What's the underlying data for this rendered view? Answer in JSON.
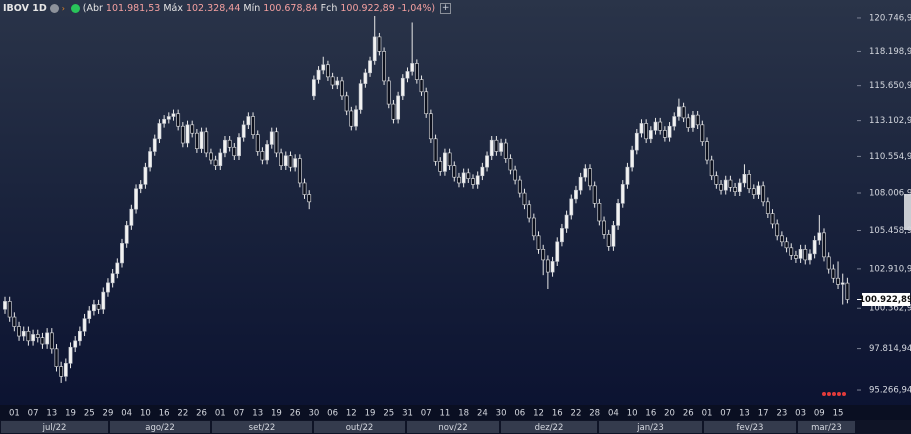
{
  "chart_data": {
    "type": "candlestick",
    "symbol": "IBOV 1D",
    "legend_items": [
      {
        "label": "(Abr",
        "value": "101.981,53"
      },
      {
        "label": "Máx",
        "value": "102.328,44"
      },
      {
        "label": "Mín",
        "value": "100.678,84"
      },
      {
        "label": "Fch",
        "value": "100.922,89"
      }
    ],
    "change": "-1,04%)",
    "log": true,
    "grid": false,
    "up_color": "#f2f2f2",
    "down_color": "#0b0f1c",
    "wick_color": "#e8e8e8",
    "ylim": [
      94363,
      121206
    ],
    "yticks": [
      {
        "value": 120746.94,
        "label": "120.746,94"
      },
      {
        "value": 118198.94,
        "label": "118.198,94"
      },
      {
        "value": 115650.94,
        "label": "115.650,94"
      },
      {
        "value": 113102.94,
        "label": "113.102,94"
      },
      {
        "value": 110554.94,
        "label": "110.554,94"
      },
      {
        "value": 108006.94,
        "label": "108.006,94"
      },
      {
        "value": 105458.94,
        "label": "105.458,94"
      },
      {
        "value": 102910.94,
        "label": "102.910,94"
      },
      {
        "value": 100362.94,
        "label": "100.362,94"
      },
      {
        "value": 97814.94,
        "label": "97.814,94"
      },
      {
        "value": 95266.94,
        "label": "95.266,94"
      }
    ],
    "last_price": {
      "value": 100922.89,
      "label": "100.922,89"
    },
    "months": [
      "jul/22",
      "ago/22",
      "set/22",
      "out/22",
      "nov/22",
      "dez/22",
      "jan/23",
      "fev/23",
      "mar/23"
    ],
    "categories": [
      null,
      null,
      "01",
      null,
      null,
      null,
      "07",
      null,
      null,
      null,
      "13",
      null,
      null,
      null,
      "19",
      null,
      null,
      null,
      "25",
      null,
      null,
      null,
      "29",
      null,
      null,
      null,
      "04",
      null,
      null,
      null,
      "10",
      null,
      null,
      null,
      "16",
      null,
      null,
      null,
      "22",
      null,
      null,
      null,
      "26",
      null,
      null,
      null,
      "01",
      null,
      null,
      null,
      "07",
      null,
      null,
      null,
      "13",
      null,
      null,
      null,
      "19",
      null,
      null,
      null,
      "26",
      null,
      null,
      null,
      "30",
      null,
      null,
      null,
      "06",
      null,
      null,
      null,
      "12",
      null,
      null,
      null,
      "19",
      null,
      null,
      null,
      "25",
      null,
      null,
      null,
      "31",
      null,
      null,
      null,
      "07",
      null,
      null,
      null,
      "11",
      null,
      null,
      null,
      "18",
      null,
      null,
      null,
      "24",
      null,
      null,
      null,
      "30",
      null,
      null,
      null,
      "06",
      null,
      null,
      null,
      "12",
      null,
      null,
      null,
      "16",
      null,
      null,
      null,
      "22",
      null,
      null,
      null,
      "28",
      null,
      null,
      null,
      "04",
      null,
      null,
      null,
      "10",
      null,
      null,
      null,
      "16",
      null,
      null,
      null,
      "20",
      null,
      null,
      null,
      "26",
      null,
      null,
      null,
      "01",
      null,
      null,
      null,
      "07",
      null,
      null,
      null,
      "13",
      null,
      null,
      null,
      "17",
      null,
      null,
      null,
      "23",
      null,
      null,
      null,
      "03",
      null,
      null,
      null,
      "09",
      null,
      null,
      null,
      "15",
      null,
      null
    ],
    "ohlc": [
      [
        100300,
        101100,
        100000,
        100800
      ],
      [
        100800,
        101100,
        99500,
        99800
      ],
      [
        99800,
        100100,
        98900,
        99200
      ],
      [
        99200,
        99500,
        98300,
        98600
      ],
      [
        98600,
        99200,
        98300,
        98900
      ],
      [
        98900,
        99200,
        98000,
        98300
      ],
      [
        98300,
        99000,
        98000,
        98700
      ],
      [
        98700,
        99000,
        98200,
        98500
      ],
      [
        98500,
        98800,
        97800,
        98100
      ],
      [
        98100,
        99100,
        97800,
        98800
      ],
      [
        98800,
        99100,
        97500,
        97800
      ],
      [
        97800,
        98100,
        96400,
        96700
      ],
      [
        96700,
        97000,
        95700,
        96100
      ],
      [
        96100,
        97200,
        95800,
        96900
      ],
      [
        96900,
        98200,
        96600,
        97900
      ],
      [
        97900,
        98600,
        97600,
        98300
      ],
      [
        98300,
        99200,
        98000,
        98900
      ],
      [
        98900,
        100000,
        98600,
        99700
      ],
      [
        99700,
        100500,
        99400,
        100200
      ],
      [
        100200,
        100900,
        99900,
        100600
      ],
      [
        100600,
        100900,
        100000,
        100300
      ],
      [
        100300,
        101700,
        100000,
        101400
      ],
      [
        101400,
        102300,
        101100,
        102000
      ],
      [
        102000,
        102900,
        101700,
        102600
      ],
      [
        102600,
        103600,
        102300,
        103300
      ],
      [
        103300,
        104900,
        103000,
        104600
      ],
      [
        104600,
        106100,
        104300,
        105800
      ],
      [
        105800,
        107200,
        105500,
        106900
      ],
      [
        106900,
        108600,
        106600,
        108300
      ],
      [
        108300,
        108900,
        108000,
        108600
      ],
      [
        108600,
        110100,
        108300,
        109800
      ],
      [
        109800,
        111200,
        109500,
        110900
      ],
      [
        110900,
        112100,
        110600,
        111800
      ],
      [
        111800,
        113200,
        111500,
        112900
      ],
      [
        112900,
        113500,
        112600,
        113200
      ],
      [
        113200,
        113700,
        112900,
        113400
      ],
      [
        113400,
        113900,
        113100,
        113600
      ],
      [
        113600,
        113900,
        112400,
        112700
      ],
      [
        112700,
        113000,
        111200,
        111500
      ],
      [
        111500,
        113100,
        111200,
        112800
      ],
      [
        112800,
        113100,
        111900,
        112200
      ],
      [
        112200,
        112500,
        110800,
        111100
      ],
      [
        111100,
        112600,
        110800,
        112300
      ],
      [
        112300,
        112600,
        110500,
        110800
      ],
      [
        110800,
        111100,
        110000,
        110300
      ],
      [
        110300,
        110600,
        109600,
        109900
      ],
      [
        109900,
        111100,
        109600,
        110800
      ],
      [
        110800,
        112000,
        110500,
        111700
      ],
      [
        111700,
        112000,
        110900,
        111200
      ],
      [
        111200,
        111500,
        110300,
        110600
      ],
      [
        110600,
        112200,
        110300,
        111900
      ],
      [
        111900,
        113100,
        111600,
        112800
      ],
      [
        112800,
        113700,
        112500,
        113400
      ],
      [
        113400,
        113700,
        111800,
        112100
      ],
      [
        112100,
        112400,
        110600,
        110900
      ],
      [
        110900,
        111200,
        110000,
        110300
      ],
      [
        110300,
        111700,
        110000,
        111400
      ],
      [
        111400,
        112600,
        111100,
        112300
      ],
      [
        112300,
        112600,
        110500,
        110800
      ],
      [
        110800,
        111100,
        109600,
        109900
      ],
      [
        109900,
        110900,
        109600,
        110600
      ],
      [
        110600,
        110900,
        109500,
        109800
      ],
      [
        109800,
        110700,
        109500,
        110400
      ],
      [
        110400,
        110700,
        108400,
        108700
      ],
      [
        108700,
        109000,
        107600,
        107900
      ],
      [
        107900,
        108200,
        106900,
        107400
      ],
      [
        114900,
        116400,
        114600,
        116100
      ],
      [
        116100,
        117100,
        115800,
        116800
      ],
      [
        116800,
        117800,
        116500,
        117200
      ],
      [
        117200,
        117500,
        116000,
        116300
      ],
      [
        116300,
        116600,
        115400,
        115700
      ],
      [
        115700,
        116300,
        115400,
        116000
      ],
      [
        116000,
        116300,
        114600,
        114900
      ],
      [
        114900,
        115200,
        113500,
        113800
      ],
      [
        113800,
        114100,
        112400,
        112700
      ],
      [
        112700,
        114200,
        112400,
        113900
      ],
      [
        113900,
        116100,
        113600,
        115800
      ],
      [
        115800,
        116900,
        115500,
        116600
      ],
      [
        116600,
        117800,
        116300,
        117500
      ],
      [
        117500,
        120900,
        117200,
        119300
      ],
      [
        119300,
        119600,
        117900,
        118200
      ],
      [
        118200,
        118500,
        115700,
        116000
      ],
      [
        116000,
        116300,
        114000,
        114300
      ],
      [
        114300,
        114600,
        112900,
        113200
      ],
      [
        113200,
        115200,
        112900,
        114900
      ],
      [
        114900,
        116500,
        114600,
        116200
      ],
      [
        116200,
        117000,
        115900,
        116700
      ],
      [
        116700,
        120400,
        116400,
        117300
      ],
      [
        117300,
        117600,
        115800,
        116100
      ],
      [
        116100,
        116400,
        114900,
        115200
      ],
      [
        115200,
        115500,
        113300,
        113600
      ],
      [
        113600,
        113900,
        111500,
        111800
      ],
      [
        111800,
        112100,
        109900,
        110200
      ],
      [
        110200,
        110500,
        109200,
        109500
      ],
      [
        109500,
        111100,
        109200,
        110800
      ],
      [
        110800,
        111100,
        109600,
        109900
      ],
      [
        109900,
        110200,
        108800,
        109100
      ],
      [
        109100,
        109400,
        108400,
        108700
      ],
      [
        108700,
        109700,
        108400,
        109400
      ],
      [
        109400,
        109700,
        108700,
        109000
      ],
      [
        109000,
        109300,
        108300,
        108600
      ],
      [
        108600,
        109500,
        108300,
        109200
      ],
      [
        109200,
        110100,
        108900,
        109800
      ],
      [
        109800,
        110900,
        109500,
        110600
      ],
      [
        110600,
        112000,
        110300,
        111700
      ],
      [
        111700,
        112000,
        110600,
        110900
      ],
      [
        110900,
        111800,
        110600,
        111500
      ],
      [
        111500,
        111800,
        110100,
        110400
      ],
      [
        110400,
        110700,
        109300,
        109600
      ],
      [
        109600,
        109900,
        108600,
        108900
      ],
      [
        108900,
        109200,
        107700,
        108000
      ],
      [
        108000,
        108300,
        106900,
        107200
      ],
      [
        107200,
        107500,
        106000,
        106300
      ],
      [
        106300,
        106600,
        104800,
        105100
      ],
      [
        105100,
        105400,
        103900,
        104200
      ],
      [
        104200,
        104500,
        102500,
        103500
      ],
      [
        103500,
        103800,
        101600,
        102700
      ],
      [
        102700,
        103700,
        102400,
        103400
      ],
      [
        103400,
        105000,
        103100,
        104700
      ],
      [
        104700,
        105900,
        104400,
        105600
      ],
      [
        105600,
        106800,
        105300,
        106500
      ],
      [
        106500,
        107900,
        106200,
        107600
      ],
      [
        107600,
        108500,
        107300,
        108200
      ],
      [
        108200,
        109400,
        107900,
        109100
      ],
      [
        109100,
        110000,
        108800,
        109700
      ],
      [
        109700,
        110000,
        108200,
        108500
      ],
      [
        108500,
        108800,
        107000,
        107300
      ],
      [
        107300,
        107600,
        105800,
        106100
      ],
      [
        106100,
        106400,
        104900,
        105200
      ],
      [
        105200,
        105500,
        104100,
        104400
      ],
      [
        104400,
        106100,
        104100,
        105800
      ],
      [
        105800,
        107600,
        105500,
        107300
      ],
      [
        107300,
        108900,
        107000,
        108600
      ],
      [
        108600,
        110100,
        108300,
        109800
      ],
      [
        109800,
        111300,
        109500,
        111000
      ],
      [
        111000,
        112500,
        110700,
        112200
      ],
      [
        112200,
        113200,
        111900,
        112900
      ],
      [
        112900,
        113200,
        111500,
        111800
      ],
      [
        111800,
        112700,
        111500,
        112400
      ],
      [
        112400,
        113300,
        112100,
        113000
      ],
      [
        113000,
        113300,
        112100,
        112400
      ],
      [
        112400,
        112700,
        111600,
        111900
      ],
      [
        111900,
        113000,
        111600,
        112700
      ],
      [
        112700,
        113700,
        112400,
        113400
      ],
      [
        113400,
        114700,
        113100,
        114100
      ],
      [
        114100,
        114400,
        113000,
        113300
      ],
      [
        113300,
        113600,
        112300,
        112600
      ],
      [
        112600,
        113800,
        112300,
        113500
      ],
      [
        113500,
        113800,
        112500,
        112800
      ],
      [
        112800,
        113100,
        111300,
        111600
      ],
      [
        111600,
        111900,
        110000,
        110300
      ],
      [
        110300,
        110600,
        108900,
        109200
      ],
      [
        109200,
        109500,
        108300,
        108600
      ],
      [
        108600,
        108900,
        107900,
        108200
      ],
      [
        108200,
        109200,
        107900,
        108900
      ],
      [
        108900,
        109200,
        108100,
        108400
      ],
      [
        108400,
        108700,
        107800,
        108100
      ],
      [
        108100,
        109000,
        107800,
        108700
      ],
      [
        108700,
        110000,
        108400,
        109300
      ],
      [
        109300,
        109600,
        108000,
        108300
      ],
      [
        108300,
        108600,
        107600,
        107900
      ],
      [
        107900,
        108800,
        107600,
        108500
      ],
      [
        108500,
        108800,
        107100,
        107400
      ],
      [
        107400,
        107700,
        106300,
        106600
      ],
      [
        106600,
        106900,
        105600,
        105900
      ],
      [
        105900,
        106200,
        104800,
        105100
      ],
      [
        105100,
        105400,
        104400,
        104700
      ],
      [
        104700,
        105000,
        104000,
        104300
      ],
      [
        104300,
        104600,
        103500,
        103800
      ],
      [
        103800,
        104100,
        103300,
        103600
      ],
      [
        103600,
        104500,
        103300,
        104200
      ],
      [
        104200,
        104500,
        103200,
        103500
      ],
      [
        103500,
        104200,
        103200,
        103900
      ],
      [
        103900,
        105100,
        103600,
        104800
      ],
      [
        104800,
        106500,
        104500,
        105300
      ],
      [
        105300,
        105600,
        103400,
        103700
      ],
      [
        103700,
        104000,
        102600,
        102900
      ],
      [
        102900,
        103200,
        102000,
        102300
      ],
      [
        102300,
        103400,
        101600,
        101900
      ],
      [
        101900,
        102600,
        100600,
        102000
      ],
      [
        101981.53,
        102328.44,
        100678.84,
        100922.89
      ]
    ]
  }
}
